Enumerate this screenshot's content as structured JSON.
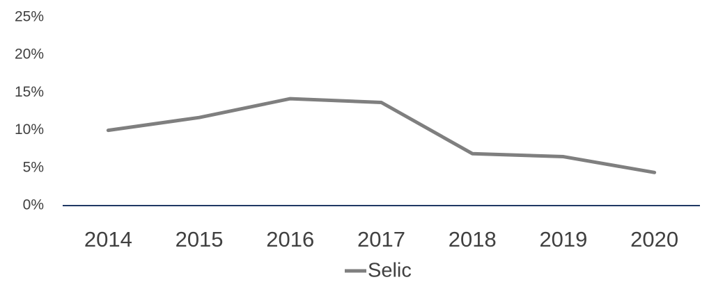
{
  "chart_data": {
    "type": "line",
    "categories": [
      "2014",
      "2015",
      "2016",
      "2017",
      "2018",
      "2019",
      "2020"
    ],
    "series": [
      {
        "name": "Selic",
        "color": "#7f7f7f",
        "values": [
          10.0,
          11.7,
          14.2,
          13.7,
          6.9,
          6.5,
          4.4
        ]
      }
    ],
    "ylim": [
      0,
      25
    ],
    "yticks": [
      {
        "value": 0,
        "label": "0%"
      },
      {
        "value": 5,
        "label": "5%"
      },
      {
        "value": 10,
        "label": "10%"
      },
      {
        "value": 15,
        "label": "15%"
      },
      {
        "value": 20,
        "label": "20%"
      },
      {
        "value": 25,
        "label": "25%"
      }
    ],
    "grid": false,
    "axis_color": "#1f3864",
    "legend": "bottom"
  }
}
